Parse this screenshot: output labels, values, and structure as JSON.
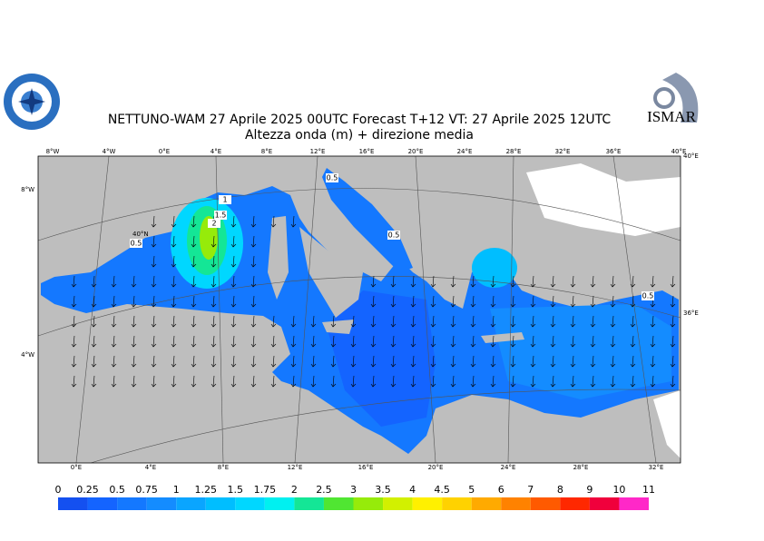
{
  "header": {
    "title": "NETTUNO-WAM  27   Aprile  2025 00UTC Forecast T+12 VT: 27   Aprile  2025 12UTC",
    "subtitle": "Altezza onda (m) + direzione media",
    "logo_right": "ISMAR"
  },
  "map": {
    "top_labels": [
      "8°W",
      "4°W",
      "0°E",
      "4°E",
      "8°E",
      "12°E",
      "16°E",
      "20°E",
      "24°E",
      "28°E",
      "32°E",
      "36°E",
      "40°E"
    ],
    "bottom_labels": [
      "0°E",
      "4°E",
      "8°E",
      "12°E",
      "16°E",
      "20°E",
      "24°E",
      "28°E",
      "32°E"
    ],
    "left_labels": [
      "8°W",
      "4°W"
    ],
    "right_labels": [
      "40°E",
      "36°E"
    ],
    "inner_labels": [
      "40°N"
    ],
    "contour_labels": [
      "0.5",
      "1",
      "1.5",
      "2",
      "0.5",
      "0.5",
      "0.5"
    ]
  },
  "colorbar": {
    "levels": [
      0,
      0.25,
      0.5,
      0.75,
      1,
      1.25,
      1.5,
      1.75,
      2,
      2.5,
      3,
      3.5,
      4,
      4.5,
      5,
      6,
      7,
      8,
      9,
      10,
      11
    ],
    "colors": [
      "#1450f0",
      "#1464ff",
      "#1478ff",
      "#148cff",
      "#0aa5ff",
      "#00beff",
      "#00d7ff",
      "#00f0f0",
      "#14e696",
      "#50e632",
      "#96eb0a",
      "#d2f000",
      "#fff000",
      "#ffd200",
      "#ffaa00",
      "#ff8200",
      "#ff5a00",
      "#ff2800",
      "#f0003c",
      "#ff28c8"
    ]
  }
}
